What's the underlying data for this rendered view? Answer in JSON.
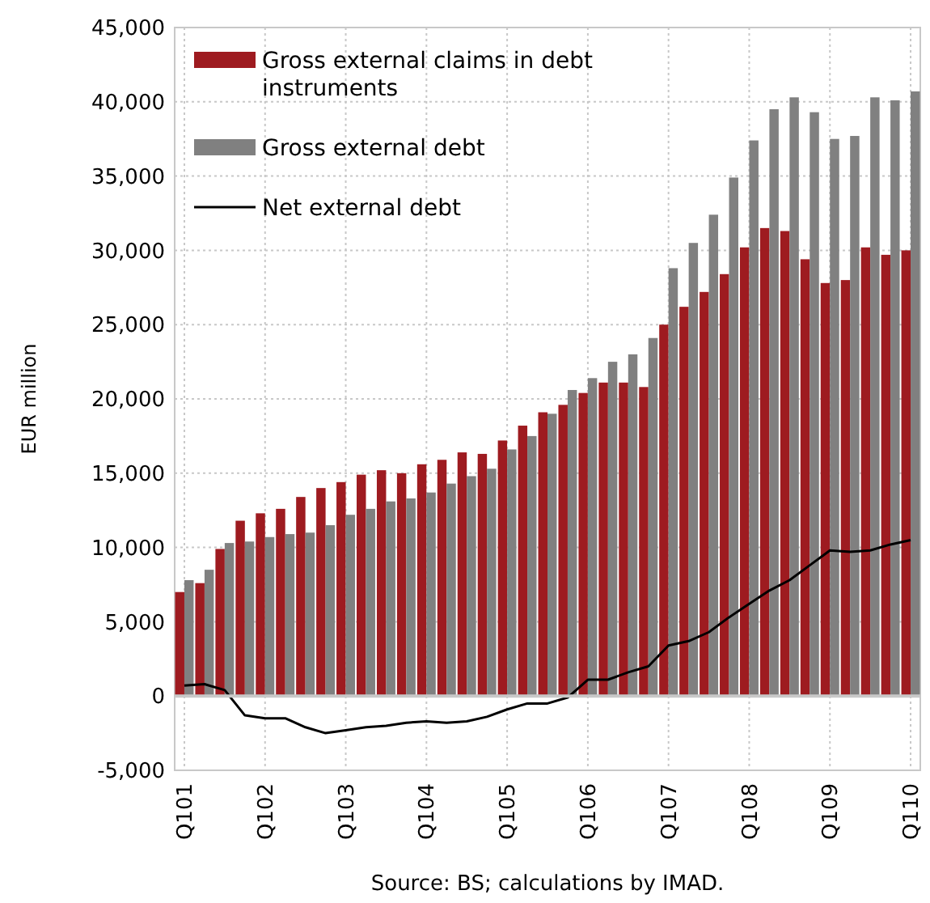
{
  "chart_data": {
    "type": "bar",
    "ylabel": "EUR million",
    "categories": [
      "Q101",
      null,
      null,
      null,
      "Q102",
      null,
      null,
      null,
      "Q103",
      null,
      null,
      null,
      "Q104",
      null,
      null,
      null,
      "Q105",
      null,
      null,
      null,
      "Q106",
      null,
      null,
      null,
      "Q107",
      null,
      null,
      null,
      "Q108",
      null,
      null,
      null,
      "Q109",
      null,
      null,
      null,
      "Q110"
    ],
    "series": [
      {
        "name": "Gross external claims in debt instruments",
        "color": "#9e1b20",
        "values": [
          7000,
          7600,
          9900,
          11800,
          12300,
          12600,
          13400,
          14000,
          14400,
          14900,
          15200,
          15000,
          15600,
          15900,
          16400,
          16300,
          17200,
          18200,
          19100,
          19600,
          20400,
          21100,
          21100,
          20800,
          25000,
          26200,
          27200,
          28400,
          30200,
          31500,
          31300,
          29400,
          27800,
          28000,
          30200,
          29700,
          30000
        ]
      },
      {
        "name": "Gross external debt",
        "color": "#808080",
        "values": [
          7800,
          8500,
          10300,
          10400,
          10700,
          10900,
          11000,
          11500,
          12200,
          12600,
          13100,
          13300,
          13700,
          14300,
          14800,
          15300,
          16600,
          17500,
          19000,
          20600,
          21400,
          22500,
          23000,
          24100,
          28800,
          30500,
          32400,
          34900,
          37400,
          39500,
          40300,
          39300,
          37500,
          37700,
          40300,
          40100,
          40700
        ]
      },
      {
        "name": "Net external debt",
        "type": "line",
        "color": "#000000",
        "values": [
          700,
          800,
          400,
          -1300,
          -1500,
          -1500,
          -2100,
          -2500,
          -2300,
          -2100,
          -2000,
          -1800,
          -1700,
          -1800,
          -1700,
          -1400,
          -900,
          -500,
          -500,
          -100,
          1100,
          1100,
          1600,
          2000,
          3400,
          3700,
          4300,
          5300,
          6200,
          7100,
          7800,
          8800,
          9800,
          9700,
          9800,
          10200,
          10500
        ]
      }
    ],
    "ylim": [
      -5000,
      45000
    ],
    "yticks": [
      {
        "value": -5000,
        "label": "-5,000"
      },
      0,
      {
        "value": 5000,
        "label": "5,000"
      },
      {
        "value": 10000,
        "label": "10,000"
      },
      {
        "value": 15000,
        "label": "15,000"
      },
      {
        "value": 20000,
        "label": "20,000"
      },
      {
        "value": 25000,
        "label": "25,000"
      },
      {
        "value": 30000,
        "label": "30,000"
      },
      {
        "value": 35000,
        "label": "35,000"
      },
      {
        "value": 40000,
        "label": "40,000"
      },
      {
        "value": 45000,
        "label": "45,000"
      }
    ],
    "grid": true,
    "legend": "top left",
    "annotations": [
      "Source: BS; calculations by IMAD."
    ]
  }
}
